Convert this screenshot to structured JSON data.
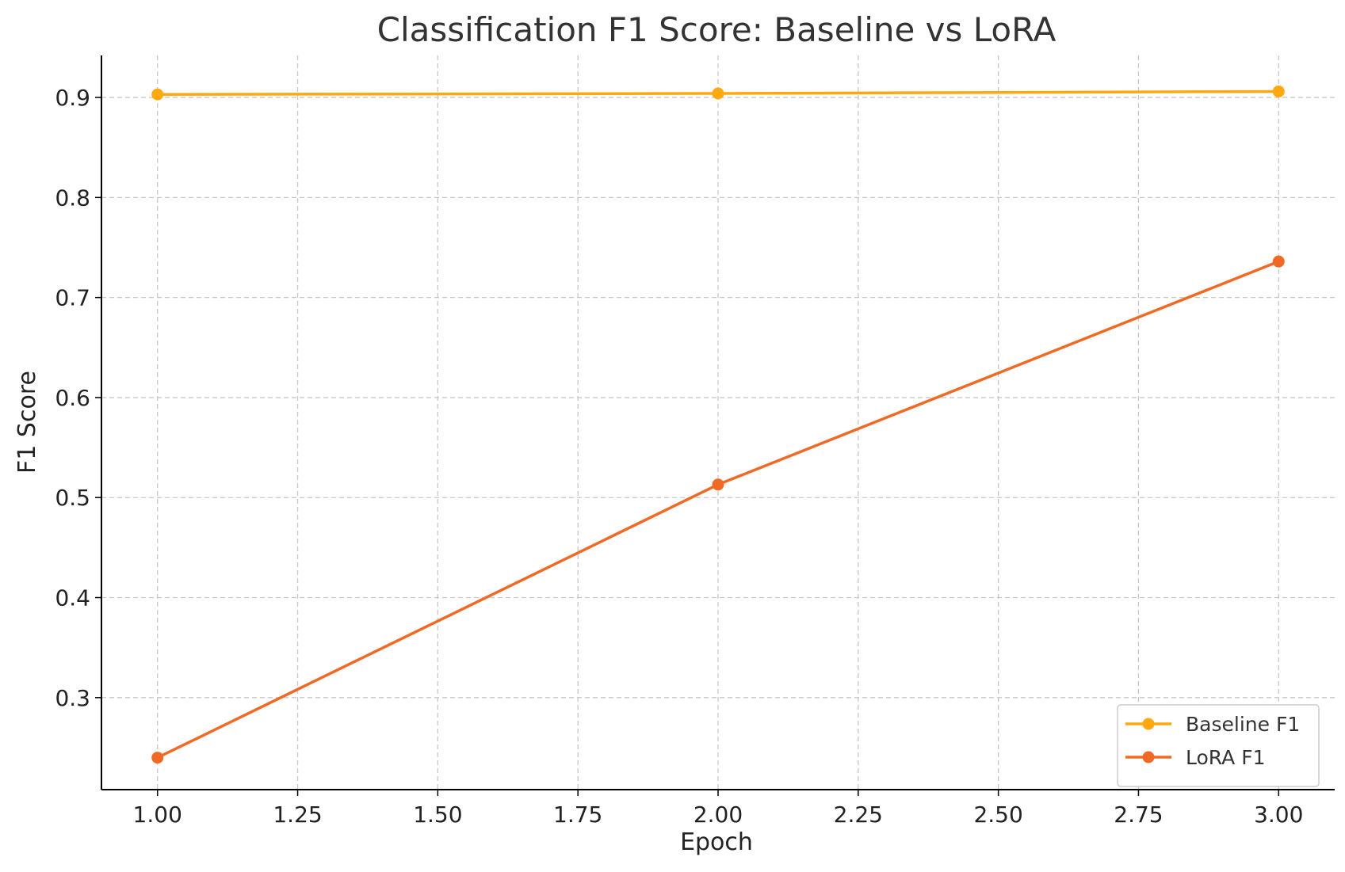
{
  "chart_data": {
    "type": "line",
    "title": "Classification F1 Score: Baseline vs LoRA",
    "xlabel": "Epoch",
    "ylabel": "F1 Score",
    "xlim": [
      0.9,
      3.1
    ],
    "ylim": [
      0.208,
      0.942
    ],
    "xticks": [
      "1.00",
      "1.25",
      "1.50",
      "1.75",
      "2.00",
      "2.25",
      "2.50",
      "2.75",
      "3.00"
    ],
    "yticks": [
      "0.3",
      "0.4",
      "0.5",
      "0.6",
      "0.7",
      "0.8",
      "0.9"
    ],
    "grid": true,
    "legend_position": "bottom-right",
    "x": [
      1,
      2,
      3
    ],
    "series": [
      {
        "name": "Baseline F1",
        "values": [
          0.903,
          0.904,
          0.906
        ],
        "color": "#FFA80F"
      },
      {
        "name": "LoRA F1",
        "values": [
          0.24,
          0.513,
          0.736
        ],
        "color": "#F06A25"
      }
    ]
  }
}
